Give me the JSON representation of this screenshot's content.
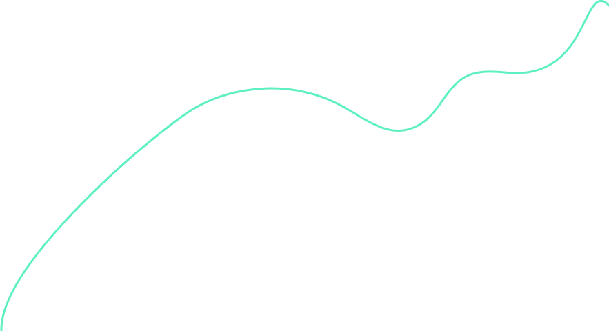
{
  "decoration": {
    "line_color": "#5ef0c3"
  }
}
